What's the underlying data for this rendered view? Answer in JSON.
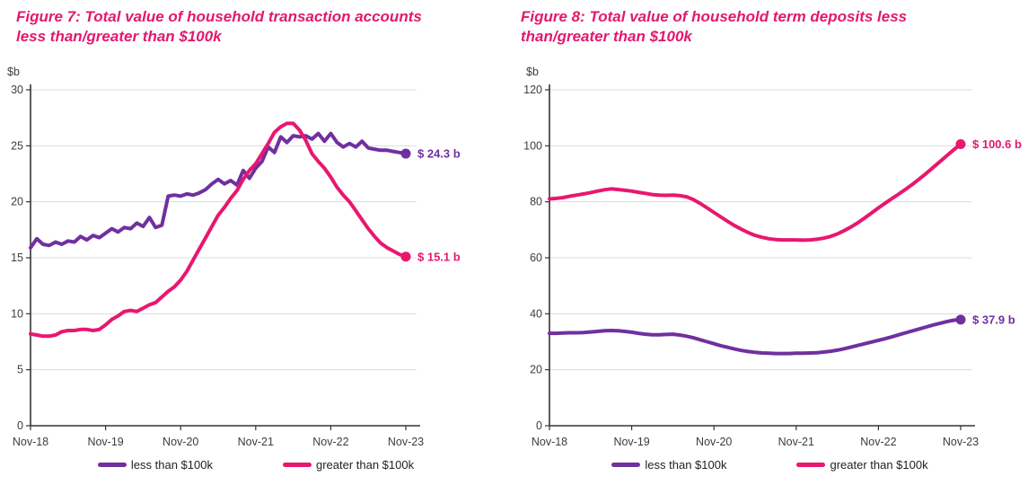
{
  "colors": {
    "purple": "#6F30A0",
    "pink": "#E8176F",
    "grid": "#DCDCDC",
    "axis": "#333333",
    "tick_text": "#3D3D3D",
    "legend_text": "#222222",
    "title": "#E3186E"
  },
  "chart_data": [
    {
      "type": "line",
      "title": "Figure 7: Total value of household transaction accounts less than/greater than $100k",
      "title_lines": [
        "Figure 7: Total value of household transaction accounts",
        "less than/greater than $100k"
      ],
      "y_axis_unit": "$b",
      "ylim": [
        0,
        30
      ],
      "yticks": [
        0,
        5,
        10,
        15,
        20,
        25,
        30
      ],
      "x_labels": [
        "Nov-18",
        "Nov-19",
        "Nov-20",
        "Nov-21",
        "Nov-22",
        "Nov-23"
      ],
      "grid": true,
      "legend_position": "bottom",
      "series": [
        {
          "name": "less than $100k",
          "color_key": "purple",
          "end_label": "$ 24.3 b",
          "end_value": 24.3,
          "values": [
            15.9,
            16.7,
            16.2,
            16.1,
            16.4,
            16.2,
            16.5,
            16.4,
            16.9,
            16.6,
            17.0,
            16.8,
            17.2,
            17.6,
            17.3,
            17.7,
            17.6,
            18.1,
            17.8,
            18.6,
            17.7,
            17.9,
            20.5,
            20.6,
            20.5,
            20.7,
            20.6,
            20.8,
            21.1,
            21.6,
            22.0,
            21.6,
            21.9,
            21.5,
            22.8,
            22.1,
            23.0,
            23.6,
            24.9,
            24.4,
            25.8,
            25.3,
            25.9,
            25.8,
            25.9,
            25.6,
            26.1,
            25.4,
            26.1,
            25.3,
            24.9,
            25.2,
            24.9,
            25.4,
            24.8,
            24.7,
            24.6,
            24.6,
            24.5,
            24.4,
            24.3
          ]
        },
        {
          "name": "greater than $100k",
          "color_key": "pink",
          "end_label": "$ 15.1 b",
          "end_value": 15.1,
          "values": [
            8.2,
            8.1,
            8.0,
            8.0,
            8.1,
            8.4,
            8.5,
            8.5,
            8.6,
            8.6,
            8.5,
            8.6,
            9.0,
            9.5,
            9.8,
            10.2,
            10.3,
            10.2,
            10.5,
            10.8,
            11.0,
            11.5,
            12.0,
            12.4,
            13.0,
            13.8,
            14.8,
            15.8,
            16.8,
            17.8,
            18.8,
            19.5,
            20.3,
            21.0,
            22.0,
            22.8,
            23.4,
            24.3,
            25.2,
            26.2,
            26.7,
            27.0,
            27.0,
            26.4,
            25.5,
            24.3,
            23.6,
            23.0,
            22.2,
            21.3,
            20.6,
            20.0,
            19.2,
            18.4,
            17.6,
            16.9,
            16.3,
            15.9,
            15.6,
            15.3,
            15.1
          ]
        }
      ]
    },
    {
      "type": "line",
      "title": "Figure 8: Total value of household term deposits less than/greater than $100k",
      "title_lines": [
        "Figure 8: Total value of household term deposits less",
        "than/greater than $100k"
      ],
      "y_axis_unit": "$b",
      "ylim": [
        0,
        120
      ],
      "yticks": [
        0,
        20,
        40,
        60,
        80,
        100,
        120
      ],
      "x_labels": [
        "Nov-18",
        "Nov-19",
        "Nov-20",
        "Nov-21",
        "Nov-22",
        "Nov-23"
      ],
      "grid": true,
      "legend_position": "bottom",
      "series": [
        {
          "name": "less than $100k",
          "color_key": "purple",
          "end_label": "$ 37.9 b",
          "end_value": 37.9,
          "values": [
            33.0,
            33.0,
            33.1,
            33.2,
            33.2,
            33.3,
            33.5,
            33.7,
            33.9,
            34.0,
            33.9,
            33.7,
            33.4,
            33.0,
            32.7,
            32.5,
            32.5,
            32.6,
            32.7,
            32.4,
            32.0,
            31.4,
            30.7,
            30.0,
            29.3,
            28.6,
            28.0,
            27.4,
            26.9,
            26.5,
            26.2,
            26.0,
            25.9,
            25.8,
            25.8,
            25.8,
            25.9,
            25.9,
            26.0,
            26.1,
            26.3,
            26.6,
            27.0,
            27.5,
            28.1,
            28.7,
            29.3,
            29.9,
            30.5,
            31.1,
            31.8,
            32.5,
            33.2,
            33.9,
            34.6,
            35.3,
            36.0,
            36.6,
            37.2,
            37.7,
            37.9
          ]
        },
        {
          "name": "greater than $100k",
          "color_key": "pink",
          "end_label": "$ 100.6 b",
          "end_value": 100.6,
          "values": [
            81.0,
            81.2,
            81.5,
            82.0,
            82.4,
            82.8,
            83.3,
            83.8,
            84.3,
            84.6,
            84.4,
            84.1,
            83.8,
            83.4,
            83.0,
            82.6,
            82.4,
            82.3,
            82.4,
            82.2,
            81.8,
            80.8,
            79.4,
            77.8,
            76.2,
            74.6,
            73.0,
            71.5,
            70.2,
            69.0,
            68.0,
            67.3,
            66.8,
            66.5,
            66.4,
            66.4,
            66.4,
            66.3,
            66.4,
            66.6,
            67.0,
            67.6,
            68.5,
            69.7,
            71.0,
            72.5,
            74.2,
            76.0,
            77.8,
            79.5,
            81.2,
            82.8,
            84.5,
            86.3,
            88.2,
            90.2,
            92.3,
            94.4,
            96.5,
            98.6,
            100.6
          ]
        }
      ]
    }
  ]
}
